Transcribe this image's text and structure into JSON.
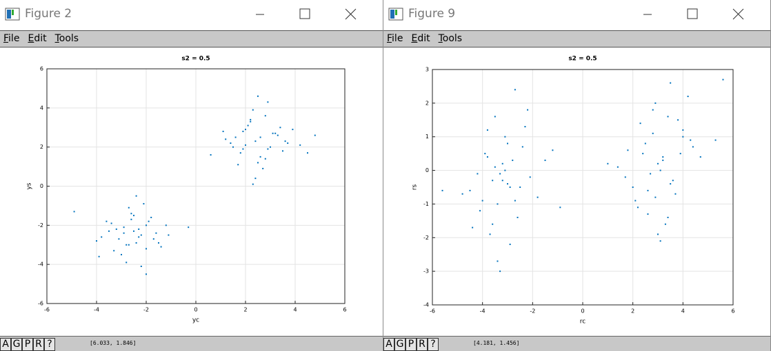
{
  "windows": [
    {
      "title": "Figure 2",
      "menu": [
        "File",
        "Edit",
        "Tools"
      ],
      "toolbar": [
        "A",
        "G",
        "P",
        "R",
        "?"
      ],
      "status": "[6.033, 1.846]",
      "chart_data": {
        "type": "scatter",
        "title": "s2 = 0.5",
        "x_label": "yc",
        "y_label": "ys",
        "color": "#0072bd",
        "grid": true,
        "xlim": [
          -6,
          6
        ],
        "ylim": [
          -6,
          6
        ],
        "xticks": [
          -6,
          -4,
          -2,
          0,
          2,
          4,
          6
        ],
        "yticks": [
          -6,
          -4,
          -2,
          0,
          2,
          4,
          6
        ],
        "x": [
          -2.5,
          -3.1,
          -1.9,
          -2.8,
          -2.2,
          -3.4,
          -1.6,
          -2.6,
          -2.9,
          -2.0,
          -3.8,
          -1.2,
          -2.4,
          -2.7,
          -3.0,
          -1.8,
          -2.3,
          -4.0,
          -2.1,
          -2.9,
          -3.3,
          -1.5,
          -2.6,
          -2.0,
          -3.6,
          -2.8,
          -1.1,
          -2.4,
          -3.2,
          -2.2,
          -4.9,
          -0.3,
          -2.7,
          -1.7,
          -3.5,
          -2.5,
          -1.4,
          -3.9,
          -2.3,
          -2.0,
          2.4,
          1.9,
          2.9,
          2.2,
          3.3,
          1.5,
          2.6,
          2.0,
          3.7,
          2.8,
          1.2,
          2.5,
          3.1,
          1.8,
          2.3,
          4.2,
          2.7,
          1.6,
          3.5,
          2.1,
          0.6,
          2.9,
          3.9,
          2.4,
          1.4,
          3.0,
          2.2,
          4.8,
          1.7,
          2.6,
          3.4,
          2.0,
          2.8,
          1.1,
          3.6,
          2.5,
          1.9,
          3.2,
          2.3,
          4.5
        ],
        "values": [
          -2.3,
          -2.7,
          -1.8,
          -3.0,
          -2.5,
          -1.9,
          -2.4,
          -1.4,
          -2.1,
          -3.2,
          -2.6,
          -2.0,
          -2.9,
          -1.1,
          -3.5,
          -1.6,
          -2.2,
          -2.8,
          -0.9,
          -2.4,
          -3.3,
          -2.9,
          -1.7,
          -2.0,
          -1.8,
          -3.9,
          -2.5,
          -0.5,
          -2.2,
          -4.1,
          -1.3,
          -2.1,
          -3.0,
          -2.7,
          -2.3,
          -1.5,
          -3.1,
          -3.6,
          -2.6,
          -4.5,
          2.3,
          2.8,
          1.9,
          3.3,
          2.6,
          2.0,
          1.5,
          2.9,
          2.2,
          3.6,
          2.4,
          1.2,
          2.7,
          1.7,
          3.9,
          2.1,
          0.9,
          2.5,
          1.8,
          3.1,
          1.6,
          4.3,
          2.9,
          0.4,
          2.2,
          2.0,
          3.4,
          2.6,
          1.1,
          2.5,
          3.0,
          2.1,
          1.4,
          2.8,
          2.3,
          4.6,
          1.9,
          2.7,
          0.1,
          1.7
        ]
      }
    },
    {
      "title": "Figure 9",
      "menu": [
        "File",
        "Edit",
        "Tools"
      ],
      "toolbar": [
        "A",
        "G",
        "P",
        "R",
        "?"
      ],
      "status": "[4.181, 1.456]",
      "chart_data": {
        "type": "scatter",
        "title": "s2 = 0.5",
        "x_label": "rc",
        "y_label": "rs",
        "color": "#0072bd",
        "grid": true,
        "xlim": [
          -6,
          6
        ],
        "ylim": [
          -4,
          3
        ],
        "xticks": [
          -6,
          -4,
          -2,
          0,
          2,
          4,
          6
        ],
        "yticks": [
          -4,
          -3,
          -2,
          -1,
          0,
          1,
          2,
          3
        ],
        "x": [
          -3.2,
          -3.8,
          -2.7,
          -3.5,
          -2.9,
          -4.1,
          -2.4,
          -3.3,
          -3.6,
          -2.8,
          -4.5,
          -2.1,
          -3.1,
          -3.4,
          -3.9,
          -2.6,
          -3.0,
          -4.8,
          -2.3,
          -3.7,
          -3.2,
          -1.8,
          -3.5,
          -2.9,
          -4.2,
          -3.0,
          -1.5,
          -3.4,
          -2.5,
          -3.8,
          -5.6,
          -0.9,
          -3.1,
          -2.2,
          -4.0,
          -3.3,
          -1.2,
          -4.4,
          -2.7,
          -3.6,
          3.0,
          2.5,
          3.5,
          2.8,
          3.9,
          2.1,
          3.2,
          2.6,
          4.3,
          3.4,
          1.7,
          3.1,
          3.7,
          2.3,
          2.9,
          4.7,
          3.3,
          2.0,
          4.0,
          2.7,
          1.0,
          3.5,
          4.4,
          3.0,
          1.8,
          3.6,
          2.8,
          5.3,
          2.2,
          3.2,
          4.0,
          2.6,
          3.4,
          1.4,
          4.2,
          3.1,
          2.4,
          3.8,
          2.9,
          5.6
        ],
        "values": [
          -0.3,
          0.4,
          -0.9,
          0.1,
          -0.5,
          -1.2,
          0.7,
          -0.1,
          -1.6,
          0.3,
          -0.6,
          -0.2,
          1.0,
          -1.0,
          0.5,
          -1.4,
          -0.4,
          -0.7,
          1.3,
          -1.9,
          0.2,
          -0.8,
          1.6,
          -2.2,
          -0.1,
          0.8,
          0.3,
          -2.7,
          -0.5,
          1.2,
          -0.6,
          -1.1,
          0.0,
          1.8,
          -0.9,
          -3.0,
          0.6,
          -1.7,
          2.4,
          -0.3,
          0.2,
          0.8,
          -0.4,
          1.1,
          0.5,
          -0.9,
          0.3,
          -1.3,
          0.9,
          1.6,
          -0.2,
          0.0,
          -0.7,
          1.4,
          2.0,
          0.4,
          -1.6,
          -0.5,
          1.2,
          -0.1,
          0.2,
          2.6,
          0.7,
          -1.9,
          0.6,
          -0.3,
          1.8,
          0.9,
          -1.1,
          0.4,
          1.0,
          -0.6,
          -1.4,
          0.1,
          2.2,
          -2.1,
          0.5,
          1.5,
          -0.8,
          2.7
        ]
      }
    }
  ]
}
